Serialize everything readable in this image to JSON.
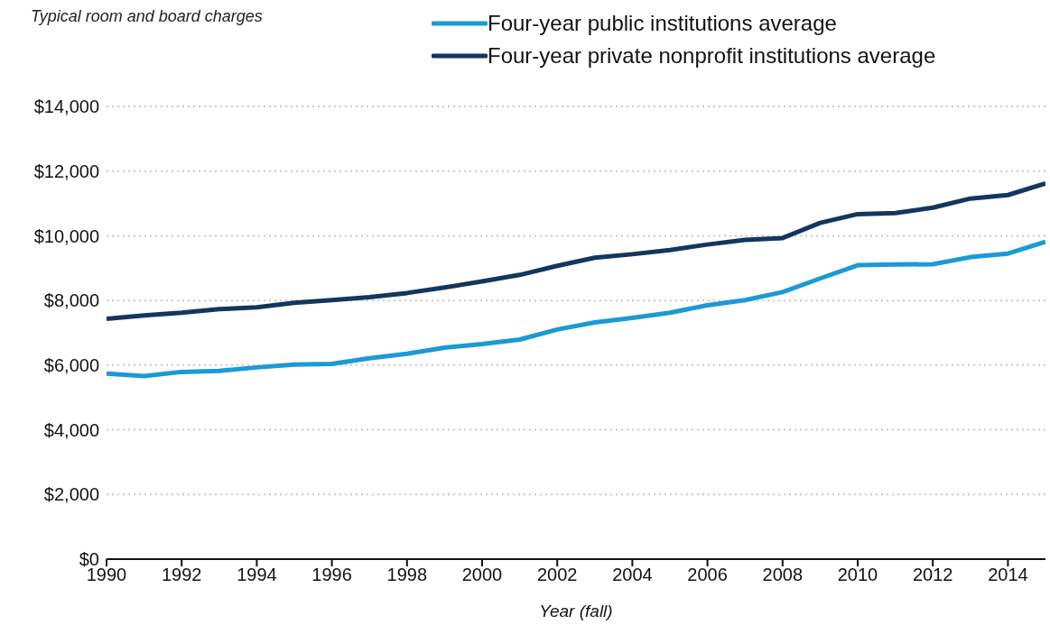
{
  "chart_data": {
    "type": "line",
    "title": "Typical room and board charges",
    "xlabel": "Year (fall)",
    "x": [
      1990,
      1991,
      1992,
      1993,
      1994,
      1995,
      1996,
      1997,
      1998,
      1999,
      2000,
      2001,
      2002,
      2003,
      2004,
      2005,
      2006,
      2007,
      2008,
      2009,
      2010,
      2011,
      2012,
      2013,
      2014,
      2015
    ],
    "series": [
      {
        "name": "Four-year public institutions average",
        "color": "#1a9ad6",
        "values": [
          5740,
          5660,
          5790,
          5820,
          5930,
          6020,
          6040,
          6210,
          6350,
          6540,
          6650,
          6790,
          7100,
          7320,
          7460,
          7620,
          7850,
          8010,
          8260,
          8680,
          9090,
          9110,
          9120,
          9340,
          9450,
          9810
        ]
      },
      {
        "name": "Four-year private nonprofit institutions average",
        "color": "#14365e",
        "values": [
          7430,
          7540,
          7620,
          7730,
          7790,
          7930,
          8010,
          8100,
          8230,
          8400,
          8590,
          8790,
          9070,
          9320,
          9430,
          9560,
          9730,
          9870,
          9930,
          10400,
          10670,
          10700,
          10870,
          11150,
          11260,
          11620
        ]
      }
    ],
    "xlim": [
      1990,
      2015
    ],
    "xticks": [
      1990,
      1992,
      1994,
      1996,
      1998,
      2000,
      2002,
      2004,
      2006,
      2008,
      2010,
      2012,
      2014
    ],
    "ylim": [
      0,
      14000
    ],
    "yticks": [
      {
        "value": 0,
        "label": "$0"
      },
      {
        "value": 2000,
        "label": "$2,000"
      },
      {
        "value": 4000,
        "label": "$4,000"
      },
      {
        "value": 6000,
        "label": "$6,000"
      },
      {
        "value": 8000,
        "label": "$8,000"
      },
      {
        "value": 10000,
        "label": "$10,000"
      },
      {
        "value": 12000,
        "label": "$12,000"
      },
      {
        "value": 14000,
        "label": "$14,000"
      }
    ],
    "grid": "y",
    "legend": "top",
    "marker": "none",
    "line_style": "solid"
  }
}
